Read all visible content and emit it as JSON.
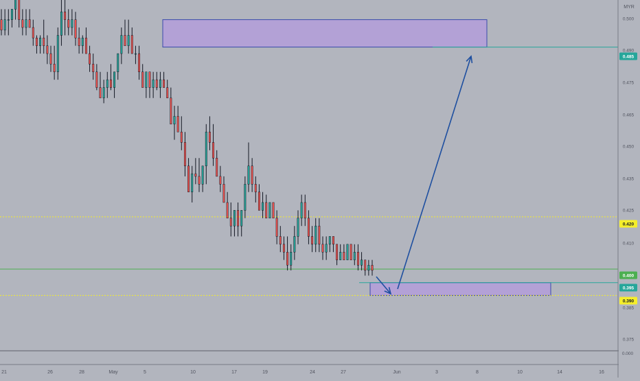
{
  "currency_label": "MYR",
  "chart_data": {
    "type": "candlestick",
    "title": "",
    "x_tick_labels": [
      "21",
      "26",
      "28",
      "May",
      "5",
      "10",
      "17",
      "19",
      "24",
      "27",
      "Jun",
      "3",
      "8",
      "10",
      "14",
      "16"
    ],
    "y_tick_labels": [
      "0.500",
      "0.490",
      "0.475",
      "0.465",
      "0.450",
      "0.435",
      "0.425",
      "0.410",
      "0.385",
      "0.375"
    ],
    "ylim": [
      0.37,
      0.503
    ],
    "price_badges": [
      {
        "label": "0.485",
        "value": 0.4855,
        "color": "#26a69a",
        "text_color": "#ffffff"
      },
      {
        "label": "0.420",
        "value": 0.4205,
        "color": "#f5ee2a",
        "text_color": "#131722"
      },
      {
        "label": "0.400",
        "value": 0.4005,
        "color": "#4caf50",
        "text_color": "#ffffff"
      },
      {
        "label": "0.395",
        "value": 0.3953,
        "color": "#26a69a",
        "text_color": "#ffffff"
      },
      {
        "label": "0.390",
        "value": 0.3904,
        "color": "#f5ee2a",
        "text_color": "#131722"
      }
    ],
    "zones": [
      {
        "name": "resistance-zone",
        "x_start": 0.4862,
        "x_end": 0.4994,
        "price_top": 0.496,
        "price_bottom": 0.4855
      },
      {
        "name": "support-zone",
        "x_start": 0.5784,
        "x_end": 0.8594,
        "price_top": 0.3953,
        "price_bottom": 0.3904
      }
    ],
    "horizontal_lines": [
      {
        "name": "target-line",
        "price": 0.4855,
        "x_start": 0.675,
        "color": "#26a69a",
        "style": "solid"
      },
      {
        "name": "entry-line",
        "price": 0.3953,
        "x_start": 0.56,
        "color": "#26a69a",
        "style": "solid"
      },
      {
        "name": "current-price-line",
        "price": 0.4005,
        "x_start": 0.0,
        "color": "#4caf50",
        "style": "solid"
      },
      {
        "name": "level-0420-line",
        "price": 0.4205,
        "x_start": 0.0,
        "color": "#f5ee2a",
        "style": "dotted"
      },
      {
        "name": "level-0390-line",
        "price": 0.3904,
        "x_start": 0.0,
        "color": "#f5ee2a",
        "style": "dotted"
      }
    ],
    "arrows": [
      {
        "name": "down-arrow",
        "from": [
          0.588,
          0.401
        ],
        "to": [
          0.61,
          0.395
        ]
      },
      {
        "name": "up-arrow",
        "from": [
          0.62,
          0.3955
        ],
        "to": [
          0.737,
          0.4855
        ]
      }
    ],
    "candles": [
      {
        "o": 0.496,
        "h": 0.5,
        "l": 0.49,
        "c": 0.492
      },
      {
        "o": 0.492,
        "h": 0.5,
        "l": 0.49,
        "c": 0.496
      },
      {
        "o": 0.496,
        "h": 0.5,
        "l": 0.49,
        "c": 0.496
      },
      {
        "o": 0.496,
        "h": 0.5,
        "l": 0.493,
        "c": 0.5
      },
      {
        "o": 0.5,
        "h": 0.506,
        "l": 0.496,
        "c": 0.506
      },
      {
        "o": 0.506,
        "h": 0.506,
        "l": 0.493,
        "c": 0.496
      },
      {
        "o": 0.496,
        "h": 0.5,
        "l": 0.49,
        "c": 0.493
      },
      {
        "o": 0.493,
        "h": 0.5,
        "l": 0.49,
        "c": 0.496
      },
      {
        "o": 0.496,
        "h": 0.5,
        "l": 0.493,
        "c": 0.493
      },
      {
        "o": 0.493,
        "h": 0.496,
        "l": 0.486,
        "c": 0.489
      },
      {
        "o": 0.489,
        "h": 0.49,
        "l": 0.483,
        "c": 0.486
      },
      {
        "o": 0.486,
        "h": 0.49,
        "l": 0.483,
        "c": 0.489
      },
      {
        "o": 0.489,
        "h": 0.496,
        "l": 0.483,
        "c": 0.486
      },
      {
        "o": 0.486,
        "h": 0.49,
        "l": 0.479,
        "c": 0.483
      },
      {
        "o": 0.483,
        "h": 0.486,
        "l": 0.476,
        "c": 0.479
      },
      {
        "o": 0.479,
        "h": 0.486,
        "l": 0.473,
        "c": 0.476
      },
      {
        "o": 0.476,
        "h": 0.493,
        "l": 0.473,
        "c": 0.49
      },
      {
        "o": 0.49,
        "h": 0.506,
        "l": 0.486,
        "c": 0.499
      },
      {
        "o": 0.499,
        "h": 0.506,
        "l": 0.49,
        "c": 0.496
      },
      {
        "o": 0.496,
        "h": 0.5,
        "l": 0.49,
        "c": 0.493
      },
      {
        "o": 0.493,
        "h": 0.5,
        "l": 0.49,
        "c": 0.496
      },
      {
        "o": 0.496,
        "h": 0.499,
        "l": 0.486,
        "c": 0.489
      },
      {
        "o": 0.489,
        "h": 0.493,
        "l": 0.483,
        "c": 0.486
      },
      {
        "o": 0.486,
        "h": 0.49,
        "l": 0.483,
        "c": 0.489
      },
      {
        "o": 0.489,
        "h": 0.493,
        "l": 0.483,
        "c": 0.483
      },
      {
        "o": 0.483,
        "h": 0.486,
        "l": 0.476,
        "c": 0.479
      },
      {
        "o": 0.479,
        "h": 0.483,
        "l": 0.473,
        "c": 0.476
      },
      {
        "o": 0.476,
        "h": 0.479,
        "l": 0.469,
        "c": 0.47
      },
      {
        "o": 0.47,
        "h": 0.476,
        "l": 0.466,
        "c": 0.466
      },
      {
        "o": 0.466,
        "h": 0.473,
        "l": 0.464,
        "c": 0.47
      },
      {
        "o": 0.47,
        "h": 0.476,
        "l": 0.466,
        "c": 0.473
      },
      {
        "o": 0.473,
        "h": 0.479,
        "l": 0.469,
        "c": 0.47
      },
      {
        "o": 0.47,
        "h": 0.476,
        "l": 0.466,
        "c": 0.476
      },
      {
        "o": 0.476,
        "h": 0.483,
        "l": 0.473,
        "c": 0.483
      },
      {
        "o": 0.483,
        "h": 0.493,
        "l": 0.479,
        "c": 0.49
      },
      {
        "o": 0.49,
        "h": 0.496,
        "l": 0.486,
        "c": 0.486
      },
      {
        "o": 0.486,
        "h": 0.496,
        "l": 0.483,
        "c": 0.49
      },
      {
        "o": 0.49,
        "h": 0.493,
        "l": 0.483,
        "c": 0.483
      },
      {
        "o": 0.483,
        "h": 0.486,
        "l": 0.479,
        "c": 0.483
      },
      {
        "o": 0.483,
        "h": 0.486,
        "l": 0.473,
        "c": 0.476
      },
      {
        "o": 0.476,
        "h": 0.479,
        "l": 0.47,
        "c": 0.47
      },
      {
        "o": 0.47,
        "h": 0.476,
        "l": 0.466,
        "c": 0.476
      },
      {
        "o": 0.476,
        "h": 0.476,
        "l": 0.466,
        "c": 0.47
      },
      {
        "o": 0.47,
        "h": 0.476,
        "l": 0.466,
        "c": 0.473
      },
      {
        "o": 0.473,
        "h": 0.476,
        "l": 0.469,
        "c": 0.47
      },
      {
        "o": 0.47,
        "h": 0.476,
        "l": 0.466,
        "c": 0.473
      },
      {
        "o": 0.473,
        "h": 0.476,
        "l": 0.47,
        "c": 0.47
      },
      {
        "o": 0.47,
        "h": 0.473,
        "l": 0.466,
        "c": 0.466
      },
      {
        "o": 0.466,
        "h": 0.47,
        "l": 0.456,
        "c": 0.456
      },
      {
        "o": 0.456,
        "h": 0.463,
        "l": 0.45,
        "c": 0.459
      },
      {
        "o": 0.459,
        "h": 0.463,
        "l": 0.453,
        "c": 0.453
      },
      {
        "o": 0.453,
        "h": 0.459,
        "l": 0.446,
        "c": 0.449
      },
      {
        "o": 0.449,
        "h": 0.453,
        "l": 0.436,
        "c": 0.44
      },
      {
        "o": 0.44,
        "h": 0.443,
        "l": 0.43,
        "c": 0.43
      },
      {
        "o": 0.43,
        "h": 0.44,
        "l": 0.426,
        "c": 0.437
      },
      {
        "o": 0.437,
        "h": 0.443,
        "l": 0.433,
        "c": 0.436
      },
      {
        "o": 0.436,
        "h": 0.443,
        "l": 0.43,
        "c": 0.433
      },
      {
        "o": 0.433,
        "h": 0.44,
        "l": 0.43,
        "c": 0.44
      },
      {
        "o": 0.44,
        "h": 0.456,
        "l": 0.433,
        "c": 0.453
      },
      {
        "o": 0.453,
        "h": 0.459,
        "l": 0.446,
        "c": 0.449
      },
      {
        "o": 0.449,
        "h": 0.456,
        "l": 0.44,
        "c": 0.443
      },
      {
        "o": 0.443,
        "h": 0.446,
        "l": 0.436,
        "c": 0.436
      },
      {
        "o": 0.436,
        "h": 0.44,
        "l": 0.43,
        "c": 0.433
      },
      {
        "o": 0.433,
        "h": 0.436,
        "l": 0.426,
        "c": 0.426
      },
      {
        "o": 0.426,
        "h": 0.43,
        "l": 0.42,
        "c": 0.42
      },
      {
        "o": 0.42,
        "h": 0.426,
        "l": 0.413,
        "c": 0.417
      },
      {
        "o": 0.417,
        "h": 0.423,
        "l": 0.413,
        "c": 0.423
      },
      {
        "o": 0.423,
        "h": 0.426,
        "l": 0.413,
        "c": 0.417
      },
      {
        "o": 0.417,
        "h": 0.423,
        "l": 0.413,
        "c": 0.423
      },
      {
        "o": 0.423,
        "h": 0.436,
        "l": 0.42,
        "c": 0.433
      },
      {
        "o": 0.433,
        "h": 0.449,
        "l": 0.43,
        "c": 0.44
      },
      {
        "o": 0.44,
        "h": 0.443,
        "l": 0.43,
        "c": 0.433
      },
      {
        "o": 0.433,
        "h": 0.436,
        "l": 0.426,
        "c": 0.43
      },
      {
        "o": 0.43,
        "h": 0.433,
        "l": 0.423,
        "c": 0.423
      },
      {
        "o": 0.423,
        "h": 0.43,
        "l": 0.42,
        "c": 0.426
      },
      {
        "o": 0.426,
        "h": 0.429,
        "l": 0.42,
        "c": 0.42
      },
      {
        "o": 0.42,
        "h": 0.426,
        "l": 0.42,
        "c": 0.426
      },
      {
        "o": 0.426,
        "h": 0.426,
        "l": 0.42,
        "c": 0.42
      },
      {
        "o": 0.42,
        "h": 0.423,
        "l": 0.41,
        "c": 0.413
      },
      {
        "o": 0.413,
        "h": 0.417,
        "l": 0.407,
        "c": 0.41
      },
      {
        "o": 0.41,
        "h": 0.413,
        "l": 0.404,
        "c": 0.407
      },
      {
        "o": 0.407,
        "h": 0.413,
        "l": 0.4,
        "c": 0.402
      },
      {
        "o": 0.402,
        "h": 0.41,
        "l": 0.4,
        "c": 0.407
      },
      {
        "o": 0.407,
        "h": 0.417,
        "l": 0.404,
        "c": 0.413
      },
      {
        "o": 0.413,
        "h": 0.423,
        "l": 0.41,
        "c": 0.42
      },
      {
        "o": 0.42,
        "h": 0.429,
        "l": 0.417,
        "c": 0.426
      },
      {
        "o": 0.426,
        "h": 0.429,
        "l": 0.417,
        "c": 0.42
      },
      {
        "o": 0.42,
        "h": 0.423,
        "l": 0.41,
        "c": 0.413
      },
      {
        "o": 0.413,
        "h": 0.417,
        "l": 0.407,
        "c": 0.41
      },
      {
        "o": 0.41,
        "h": 0.42,
        "l": 0.407,
        "c": 0.417
      },
      {
        "o": 0.417,
        "h": 0.42,
        "l": 0.407,
        "c": 0.41
      },
      {
        "o": 0.41,
        "h": 0.413,
        "l": 0.404,
        "c": 0.407
      },
      {
        "o": 0.407,
        "h": 0.413,
        "l": 0.404,
        "c": 0.41
      },
      {
        "o": 0.41,
        "h": 0.413,
        "l": 0.407,
        "c": 0.413
      },
      {
        "o": 0.413,
        "h": 0.413,
        "l": 0.407,
        "c": 0.41
      },
      {
        "o": 0.41,
        "h": 0.41,
        "l": 0.402,
        "c": 0.404
      },
      {
        "o": 0.404,
        "h": 0.41,
        "l": 0.404,
        "c": 0.407
      },
      {
        "o": 0.407,
        "h": 0.41,
        "l": 0.404,
        "c": 0.404
      },
      {
        "o": 0.404,
        "h": 0.41,
        "l": 0.404,
        "c": 0.41
      },
      {
        "o": 0.41,
        "h": 0.41,
        "l": 0.404,
        "c": 0.404
      },
      {
        "o": 0.404,
        "h": 0.41,
        "l": 0.402,
        "c": 0.407
      },
      {
        "o": 0.407,
        "h": 0.41,
        "l": 0.4,
        "c": 0.402
      },
      {
        "o": 0.402,
        "h": 0.407,
        "l": 0.4,
        "c": 0.404
      },
      {
        "o": 0.404,
        "h": 0.404,
        "l": 0.398,
        "c": 0.4
      },
      {
        "o": 0.4,
        "h": 0.404,
        "l": 0.398,
        "c": 0.402
      },
      {
        "o": 0.402,
        "h": 0.404,
        "l": 0.398,
        "c": 0.4
      }
    ]
  }
}
